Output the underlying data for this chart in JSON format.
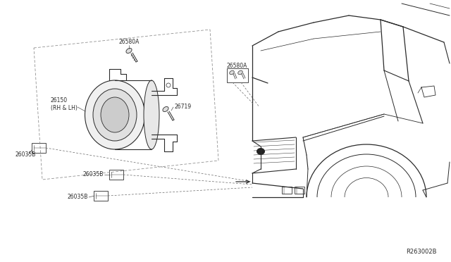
{
  "bg_color": "#ffffff",
  "line_color": "#2a2a2a",
  "text_color": "#2a2a2a",
  "fig_width": 6.4,
  "fig_height": 3.72,
  "dpi": 100,
  "labels": {
    "26580A_top": "26580A",
    "26150": "26150\n(RH & LH)",
    "26719": "26719",
    "26035B_left": "26035B",
    "26035B_mid": "26035B",
    "26035B_bot": "26035B",
    "26580A_car": "26580A",
    "ref": "R263002B"
  },
  "label_fontsize": 5.5,
  "ref_fontsize": 6.0
}
